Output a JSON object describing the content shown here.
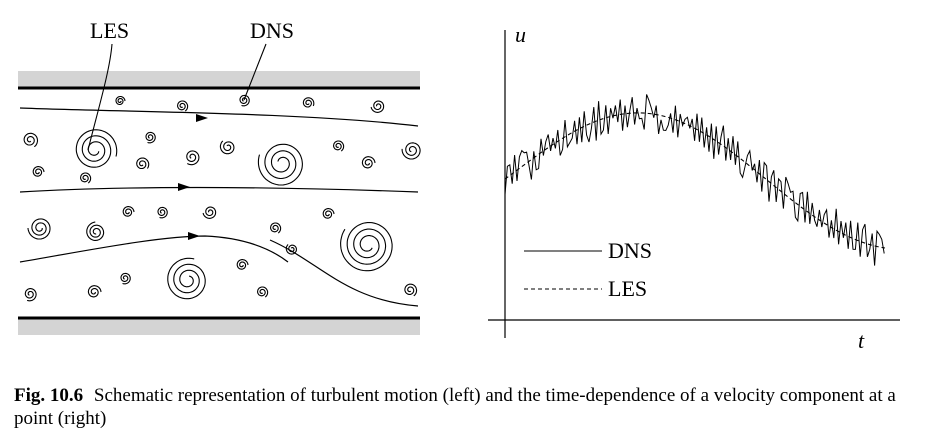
{
  "left_panel": {
    "labels": {
      "les": "LES",
      "dns": "DNS"
    }
  },
  "right_panel": {
    "axes": {
      "y_label": "u",
      "x_label": "t"
    },
    "legend": [
      {
        "name": "DNS",
        "style": "solid"
      },
      {
        "name": "LES",
        "style": "dashed"
      }
    ]
  },
  "caption": {
    "label": "Fig. 10.6",
    "text": "Schematic representation of turbulent motion (left) and the time-dependence of a velocity component at a point (right)"
  },
  "colors": {
    "ink": "#000000",
    "wall_band": "#d4d4d4",
    "background": "#ffffff"
  }
}
